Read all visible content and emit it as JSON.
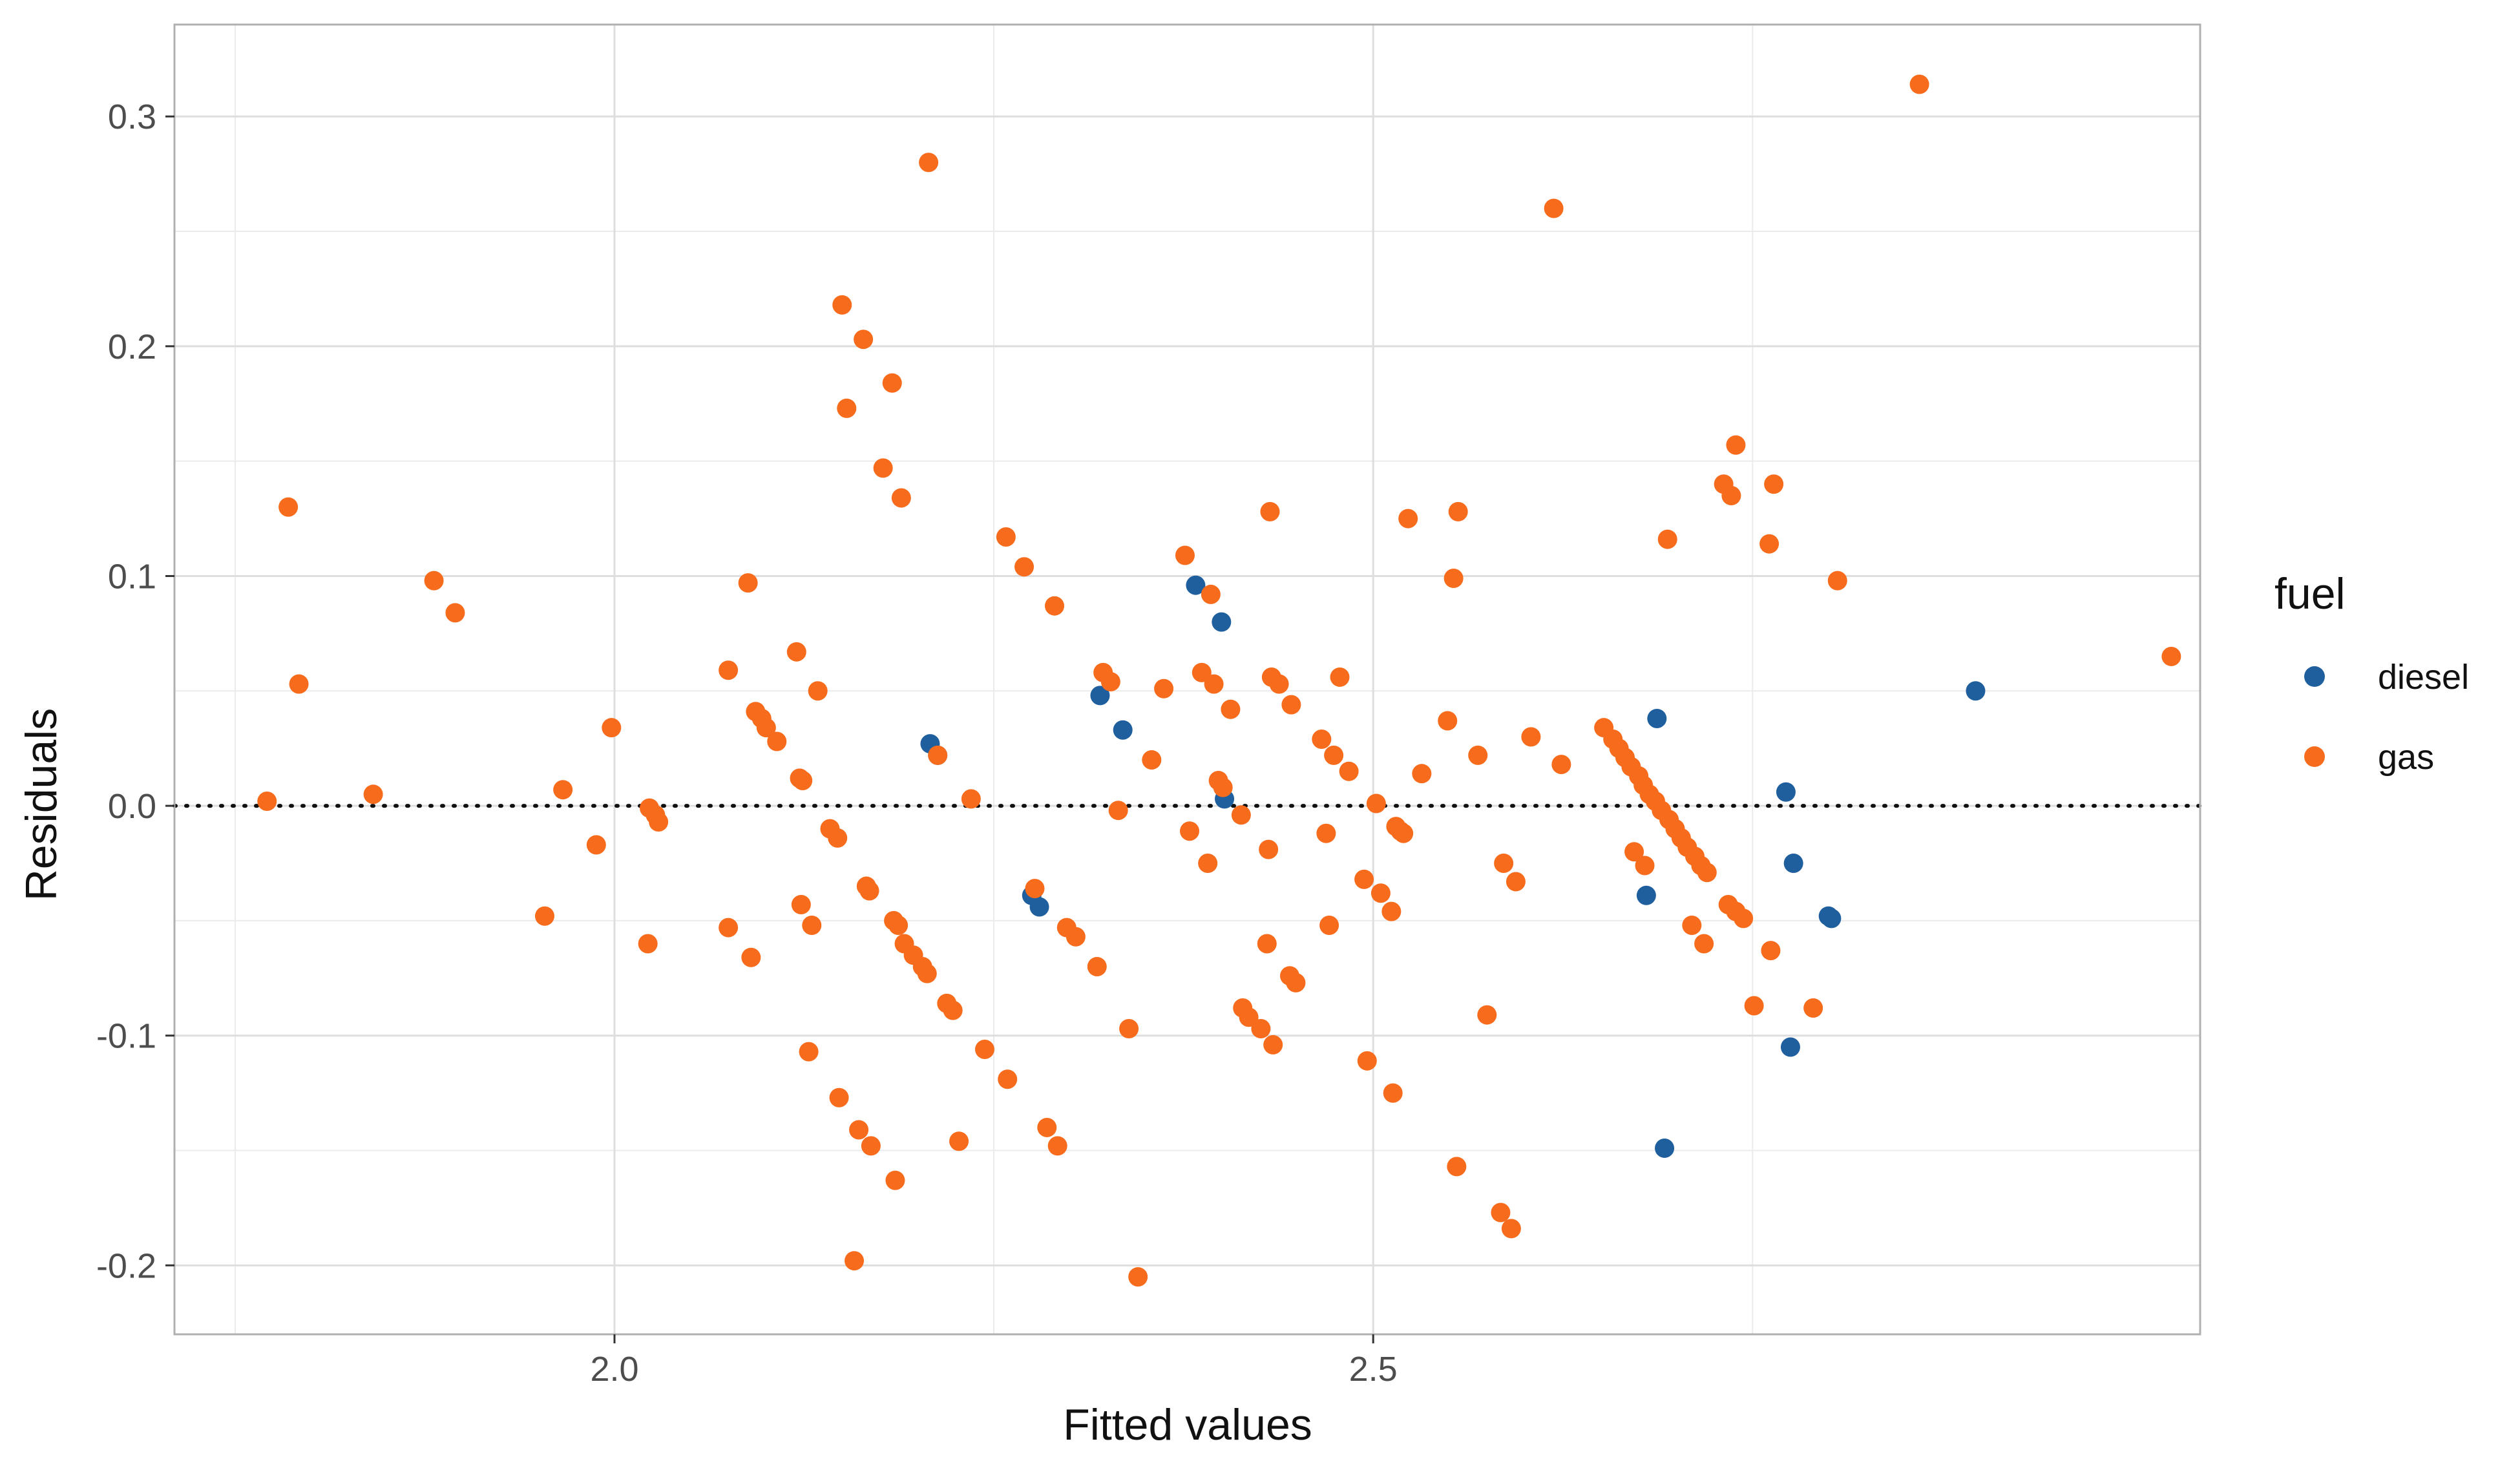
{
  "chart_data": {
    "type": "scatter",
    "title": "",
    "xlabel": "Fitted values",
    "ylabel": "Residuals",
    "xlim": [
      1.71,
      3.045
    ],
    "ylim": [
      -0.23,
      0.34
    ],
    "x_ticks": [
      2.0,
      2.5
    ],
    "x_tick_labels": [
      "2.0",
      "2.5"
    ],
    "y_ticks": [
      -0.2,
      -0.1,
      0.0,
      0.1,
      0.2,
      0.3
    ],
    "y_tick_labels": [
      "-0.2",
      "-0.1",
      "0.0",
      "0.1",
      "0.2",
      "0.3"
    ],
    "reference_line": {
      "y": 0.0,
      "style": "dotted"
    },
    "grid": true,
    "legend": {
      "title": "fuel",
      "placement": "right"
    },
    "series": [
      {
        "name": "diesel",
        "color": "#1f5f9e",
        "points": [
          [
            2.208,
            0.027
          ],
          [
            2.213,
            0.022
          ],
          [
            2.275,
            -0.039
          ],
          [
            2.28,
            -0.044
          ],
          [
            2.32,
            0.048
          ],
          [
            2.335,
            0.033
          ],
          [
            2.383,
            0.096
          ],
          [
            2.4,
            0.08
          ],
          [
            2.402,
            0.003
          ],
          [
            2.68,
            -0.039
          ],
          [
            2.687,
            0.038
          ],
          [
            2.692,
            -0.149
          ],
          [
            2.772,
            0.006
          ],
          [
            2.775,
            -0.105
          ],
          [
            2.777,
            -0.025
          ],
          [
            2.8,
            -0.048
          ],
          [
            2.802,
            -0.049
          ],
          [
            2.897,
            0.05
          ]
        ]
      },
      {
        "name": "gas",
        "color": "#f76b1c",
        "points": [
          [
            1.771,
            0.002
          ],
          [
            1.785,
            0.13
          ],
          [
            1.792,
            0.053
          ],
          [
            1.841,
            0.005
          ],
          [
            1.881,
            0.098
          ],
          [
            1.895,
            0.084
          ],
          [
            1.954,
            -0.048
          ],
          [
            1.966,
            0.007
          ],
          [
            1.988,
            -0.017
          ],
          [
            1.998,
            0.034
          ],
          [
            2.022,
            -0.06
          ],
          [
            2.023,
            -0.001
          ],
          [
            2.027,
            -0.004
          ],
          [
            2.029,
            -0.007
          ],
          [
            2.075,
            0.059
          ],
          [
            2.075,
            -0.053
          ],
          [
            2.088,
            0.097
          ],
          [
            2.09,
            -0.066
          ],
          [
            2.093,
            0.041
          ],
          [
            2.097,
            0.038
          ],
          [
            2.1,
            0.034
          ],
          [
            2.107,
            0.028
          ],
          [
            2.12,
            0.067
          ],
          [
            2.122,
            0.012
          ],
          [
            2.123,
            -0.043
          ],
          [
            2.124,
            0.011
          ],
          [
            2.128,
            -0.107
          ],
          [
            2.13,
            -0.052
          ],
          [
            2.134,
            0.05
          ],
          [
            2.142,
            -0.01
          ],
          [
            2.147,
            -0.014
          ],
          [
            2.148,
            -0.127
          ],
          [
            2.15,
            0.218
          ],
          [
            2.153,
            0.173
          ],
          [
            2.158,
            -0.198
          ],
          [
            2.161,
            -0.141
          ],
          [
            2.164,
            0.203
          ],
          [
            2.166,
            -0.035
          ],
          [
            2.168,
            -0.037
          ],
          [
            2.169,
            -0.148
          ],
          [
            2.177,
            0.147
          ],
          [
            2.183,
            0.184
          ],
          [
            2.184,
            -0.05
          ],
          [
            2.185,
            -0.163
          ],
          [
            2.187,
            -0.052
          ],
          [
            2.189,
            0.134
          ],
          [
            2.191,
            -0.06
          ],
          [
            2.197,
            -0.065
          ],
          [
            2.203,
            -0.07
          ],
          [
            2.206,
            -0.073
          ],
          [
            2.207,
            0.28
          ],
          [
            2.213,
            0.022
          ],
          [
            2.219,
            -0.086
          ],
          [
            2.223,
            -0.089
          ],
          [
            2.227,
            -0.146
          ],
          [
            2.235,
            0.003
          ],
          [
            2.244,
            -0.106
          ],
          [
            2.258,
            0.117
          ],
          [
            2.259,
            -0.119
          ],
          [
            2.27,
            0.104
          ],
          [
            2.277,
            -0.036
          ],
          [
            2.285,
            -0.14
          ],
          [
            2.29,
            0.087
          ],
          [
            2.292,
            -0.148
          ],
          [
            2.298,
            -0.053
          ],
          [
            2.304,
            -0.057
          ],
          [
            2.318,
            -0.07
          ],
          [
            2.322,
            0.058
          ],
          [
            2.327,
            0.054
          ],
          [
            2.332,
            -0.002
          ],
          [
            2.339,
            -0.097
          ],
          [
            2.345,
            -0.205
          ],
          [
            2.354,
            0.02
          ],
          [
            2.362,
            0.051
          ],
          [
            2.376,
            0.109
          ],
          [
            2.379,
            -0.011
          ],
          [
            2.387,
            0.058
          ],
          [
            2.391,
            -0.025
          ],
          [
            2.393,
            0.092
          ],
          [
            2.395,
            0.053
          ],
          [
            2.398,
            0.011
          ],
          [
            2.401,
            0.008
          ],
          [
            2.406,
            0.042
          ],
          [
            2.413,
            -0.004
          ],
          [
            2.414,
            -0.088
          ],
          [
            2.418,
            -0.092
          ],
          [
            2.426,
            -0.097
          ],
          [
            2.43,
            -0.06
          ],
          [
            2.431,
            -0.019
          ],
          [
            2.432,
            0.128
          ],
          [
            2.433,
            0.056
          ],
          [
            2.434,
            -0.104
          ],
          [
            2.438,
            0.053
          ],
          [
            2.445,
            -0.074
          ],
          [
            2.446,
            0.044
          ],
          [
            2.449,
            -0.077
          ],
          [
            2.466,
            0.029
          ],
          [
            2.469,
            -0.012
          ],
          [
            2.471,
            -0.052
          ],
          [
            2.474,
            0.022
          ],
          [
            2.478,
            0.056
          ],
          [
            2.484,
            0.015
          ],
          [
            2.494,
            -0.032
          ],
          [
            2.496,
            -0.111
          ],
          [
            2.502,
            0.001
          ],
          [
            2.505,
            -0.038
          ],
          [
            2.512,
            -0.046
          ],
          [
            2.513,
            -0.125
          ],
          [
            2.515,
            -0.009
          ],
          [
            2.518,
            -0.011
          ],
          [
            2.52,
            -0.012
          ],
          [
            2.523,
            0.125
          ],
          [
            2.532,
            0.014
          ],
          [
            2.549,
            0.037
          ],
          [
            2.553,
            0.099
          ],
          [
            2.555,
            -0.157
          ],
          [
            2.556,
            0.128
          ],
          [
            2.569,
            0.022
          ],
          [
            2.575,
            -0.091
          ],
          [
            2.584,
            -0.177
          ],
          [
            2.586,
            -0.025
          ],
          [
            2.591,
            -0.184
          ],
          [
            2.594,
            -0.033
          ],
          [
            2.604,
            0.03
          ],
          [
            2.619,
            0.26
          ],
          [
            2.624,
            0.018
          ],
          [
            2.652,
            0.034
          ],
          [
            2.658,
            0.029
          ],
          [
            2.662,
            0.025
          ],
          [
            2.666,
            0.021
          ],
          [
            2.67,
            0.017
          ],
          [
            2.672,
            -0.02
          ],
          [
            2.675,
            0.013
          ],
          [
            2.678,
            0.009
          ],
          [
            2.679,
            -0.026
          ],
          [
            2.682,
            0.005
          ],
          [
            2.686,
            0.002
          ],
          [
            2.69,
            -0.002
          ],
          [
            2.694,
            0.116
          ],
          [
            2.695,
            -0.006
          ],
          [
            2.699,
            -0.01
          ],
          [
            2.703,
            -0.014
          ],
          [
            2.707,
            -0.018
          ],
          [
            2.71,
            -0.052
          ],
          [
            2.712,
            -0.022
          ],
          [
            2.716,
            -0.026
          ],
          [
            2.72,
            -0.029
          ],
          [
            2.718,
            -0.06
          ],
          [
            2.731,
            0.14
          ],
          [
            2.734,
            -0.043
          ],
          [
            2.736,
            0.135
          ],
          [
            2.739,
            0.157
          ],
          [
            2.739,
            -0.046
          ],
          [
            2.744,
            -0.049
          ],
          [
            2.751,
            -0.087
          ],
          [
            2.761,
            0.114
          ],
          [
            2.762,
            -0.063
          ],
          [
            2.764,
            0.14
          ],
          [
            2.79,
            -0.088
          ],
          [
            2.806,
            0.098
          ],
          [
            2.86,
            0.314
          ],
          [
            3.026,
            0.065
          ]
        ]
      }
    ]
  }
}
